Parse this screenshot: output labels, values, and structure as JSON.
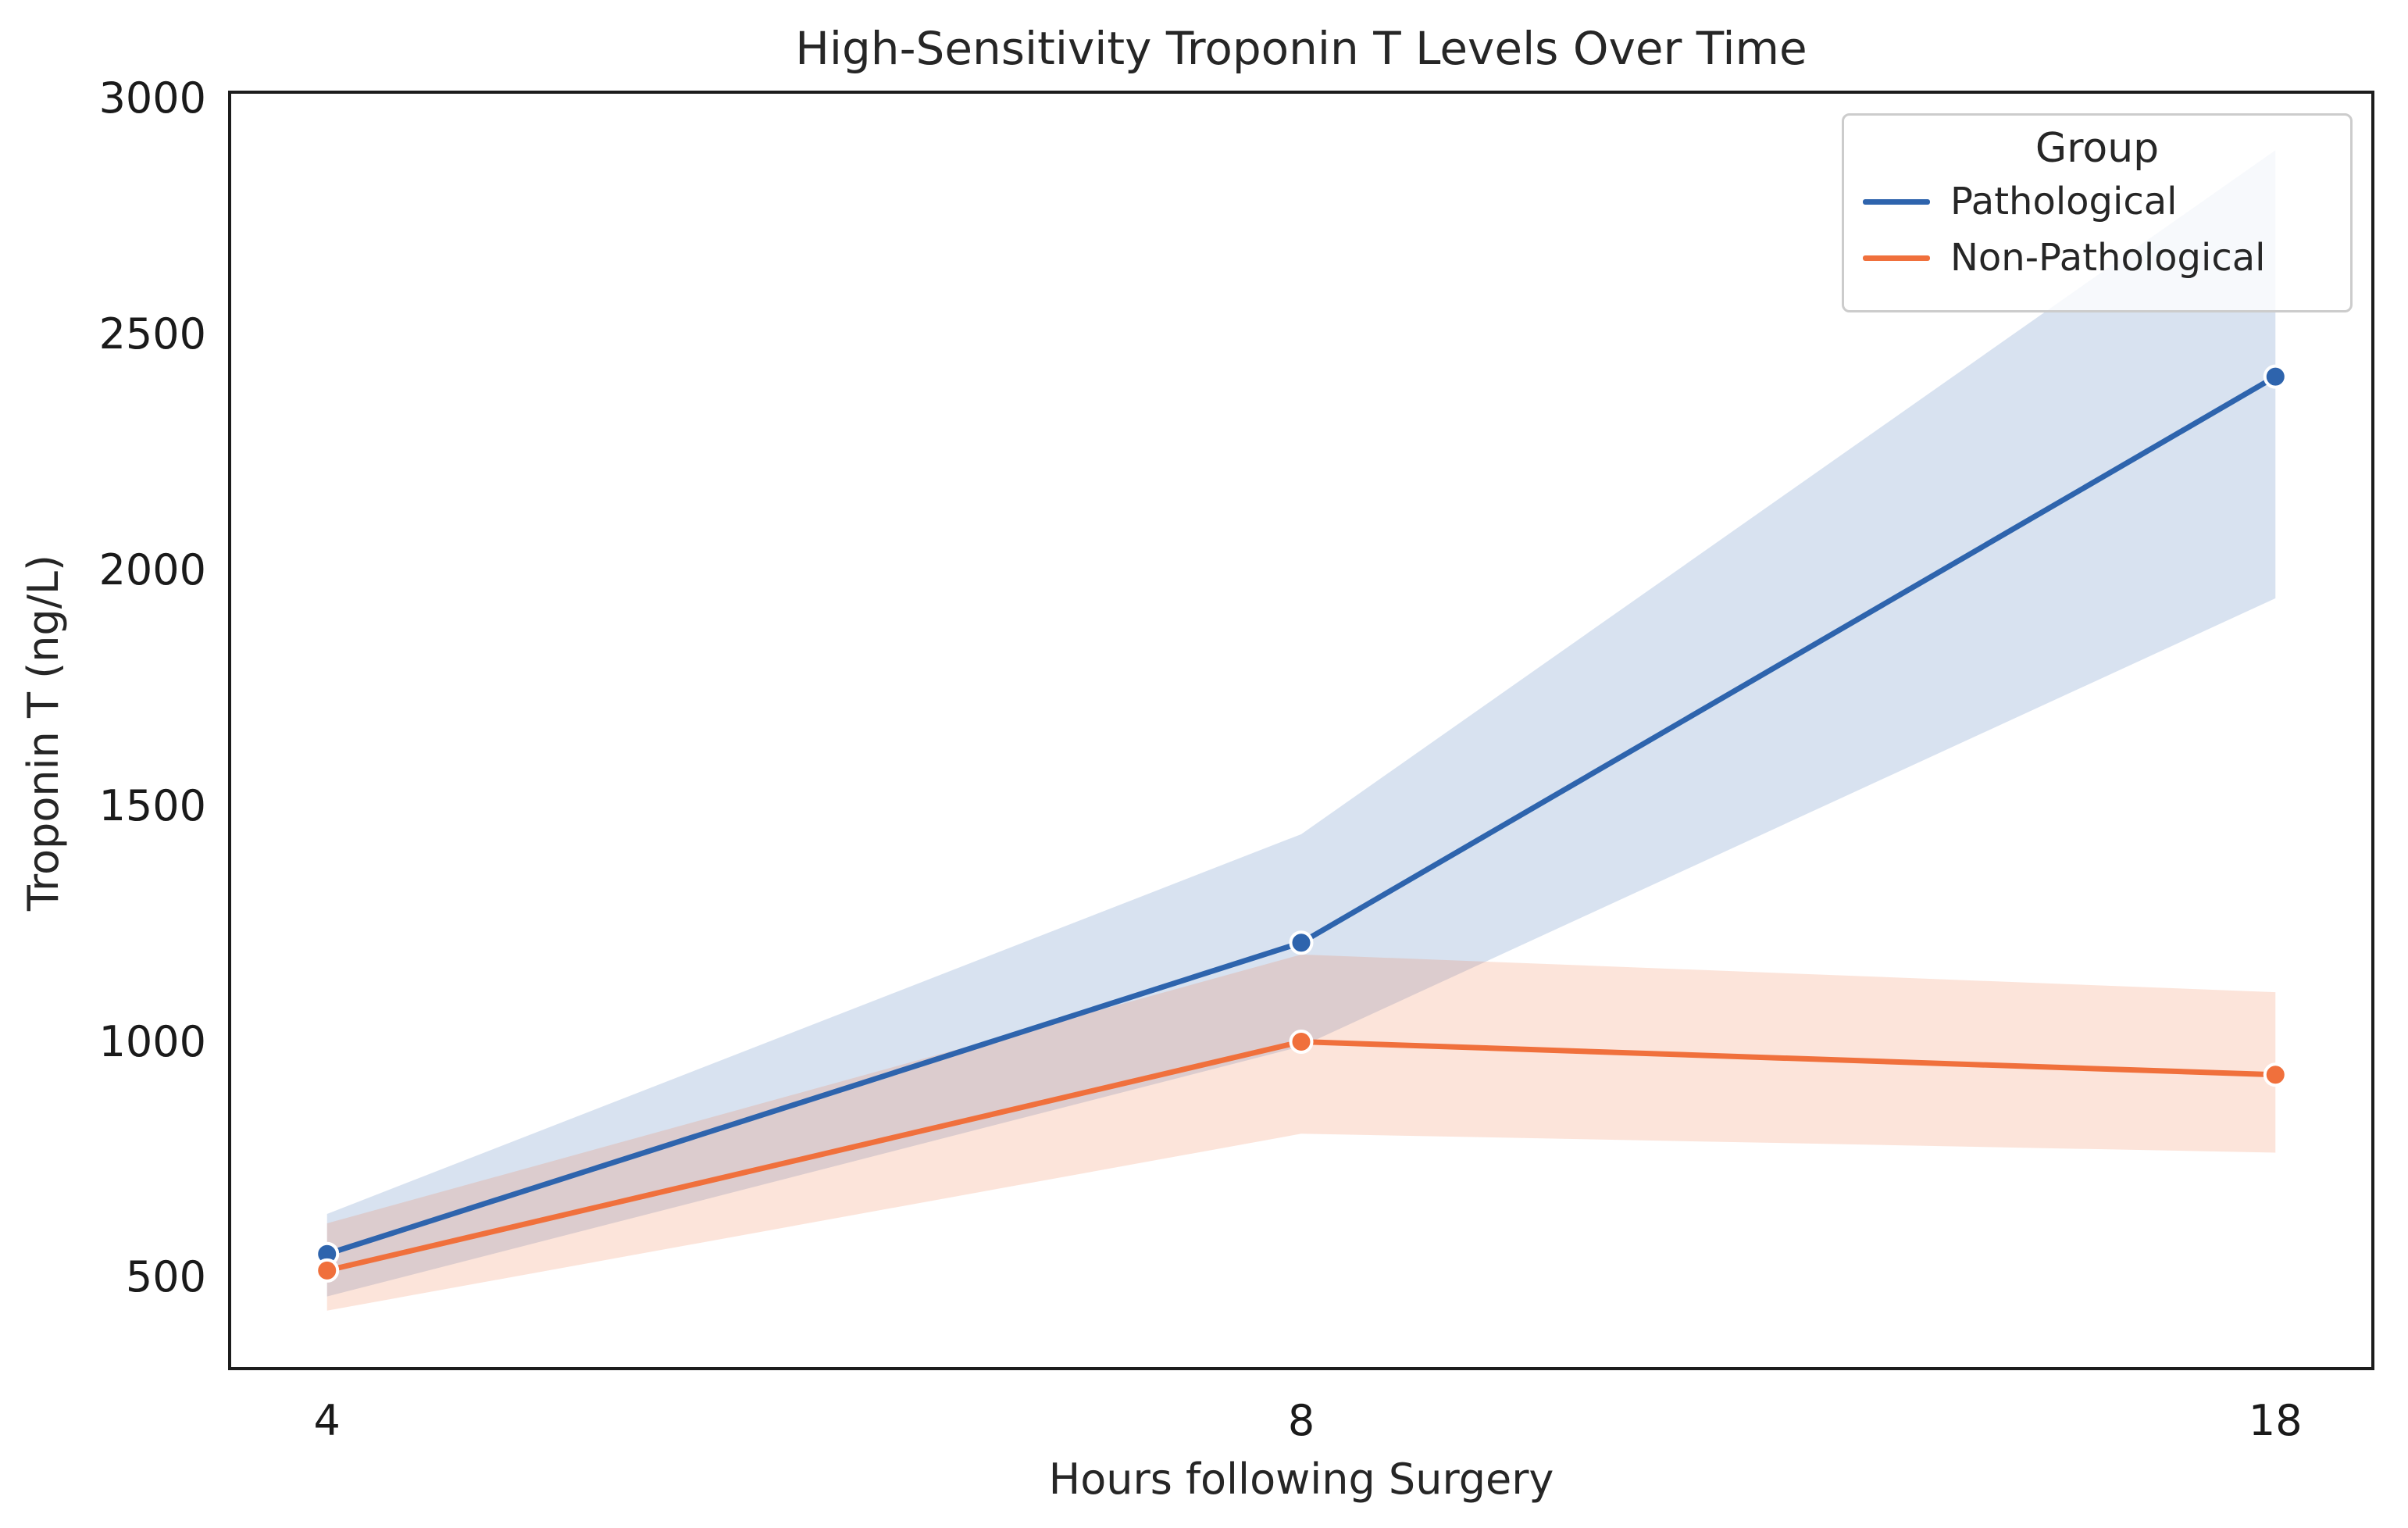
{
  "chart_data": {
    "type": "line",
    "title": "High-Sensitivity Troponin T Levels Over Time",
    "xlabel": "Hours following Surgery",
    "ylabel": "Troponin T (ng/L)",
    "x_categories": [
      "4",
      "8",
      "18"
    ],
    "x_spacing": "categorical-even",
    "yticks": [
      500,
      1000,
      1500,
      2000,
      2500,
      3000
    ],
    "ylim": [
      307,
      3013
    ],
    "grid": false,
    "band_meaning": "confidence interval shading around each line",
    "legend": {
      "title": "Group",
      "position": "upper right"
    },
    "series": [
      {
        "name": "Pathological",
        "color": "#2e64ad",
        "values": [
          550,
          1210,
          2410
        ],
        "ci_lower": [
          460,
          990,
          1940
        ],
        "ci_upper": [
          635,
          1440,
          2890
        ]
      },
      {
        "name": "Non-Pathological",
        "color": "#f0703c",
        "values": [
          515,
          1000,
          930
        ],
        "ci_lower": [
          430,
          805,
          765
        ],
        "ci_upper": [
          615,
          1185,
          1105
        ]
      }
    ]
  }
}
